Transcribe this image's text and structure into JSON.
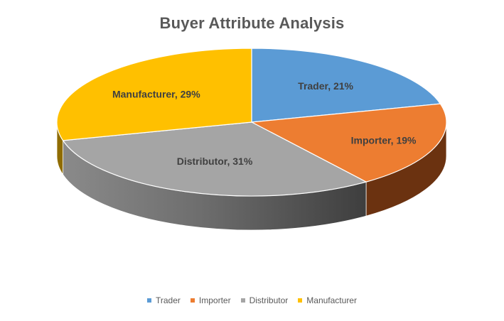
{
  "chart_data": {
    "type": "pie",
    "title": "Buyer Attribute Analysis",
    "slices": [
      {
        "label": "Trader",
        "value": 21,
        "display": "Trader, 21%",
        "color": "#5B9BD5",
        "side": "#2E5F8E"
      },
      {
        "label": "Importer",
        "value": 19,
        "display": "Importer, 19%",
        "color": "#ED7D31",
        "side": "#6B3210"
      },
      {
        "label": "Distributor",
        "value": 31,
        "display": "Distributor, 31%",
        "color": "#A5A5A5",
        "side": "#5E5E5E"
      },
      {
        "label": "Manufacturer",
        "value": 29,
        "display": "Manufacturer, 29%",
        "color": "#FFC000",
        "side": "#8F6C00"
      }
    ],
    "legend": [
      "Trader",
      "Importer",
      "Distributor",
      "Manufacturer"
    ],
    "legend_position": "bottom",
    "style": "3d"
  }
}
